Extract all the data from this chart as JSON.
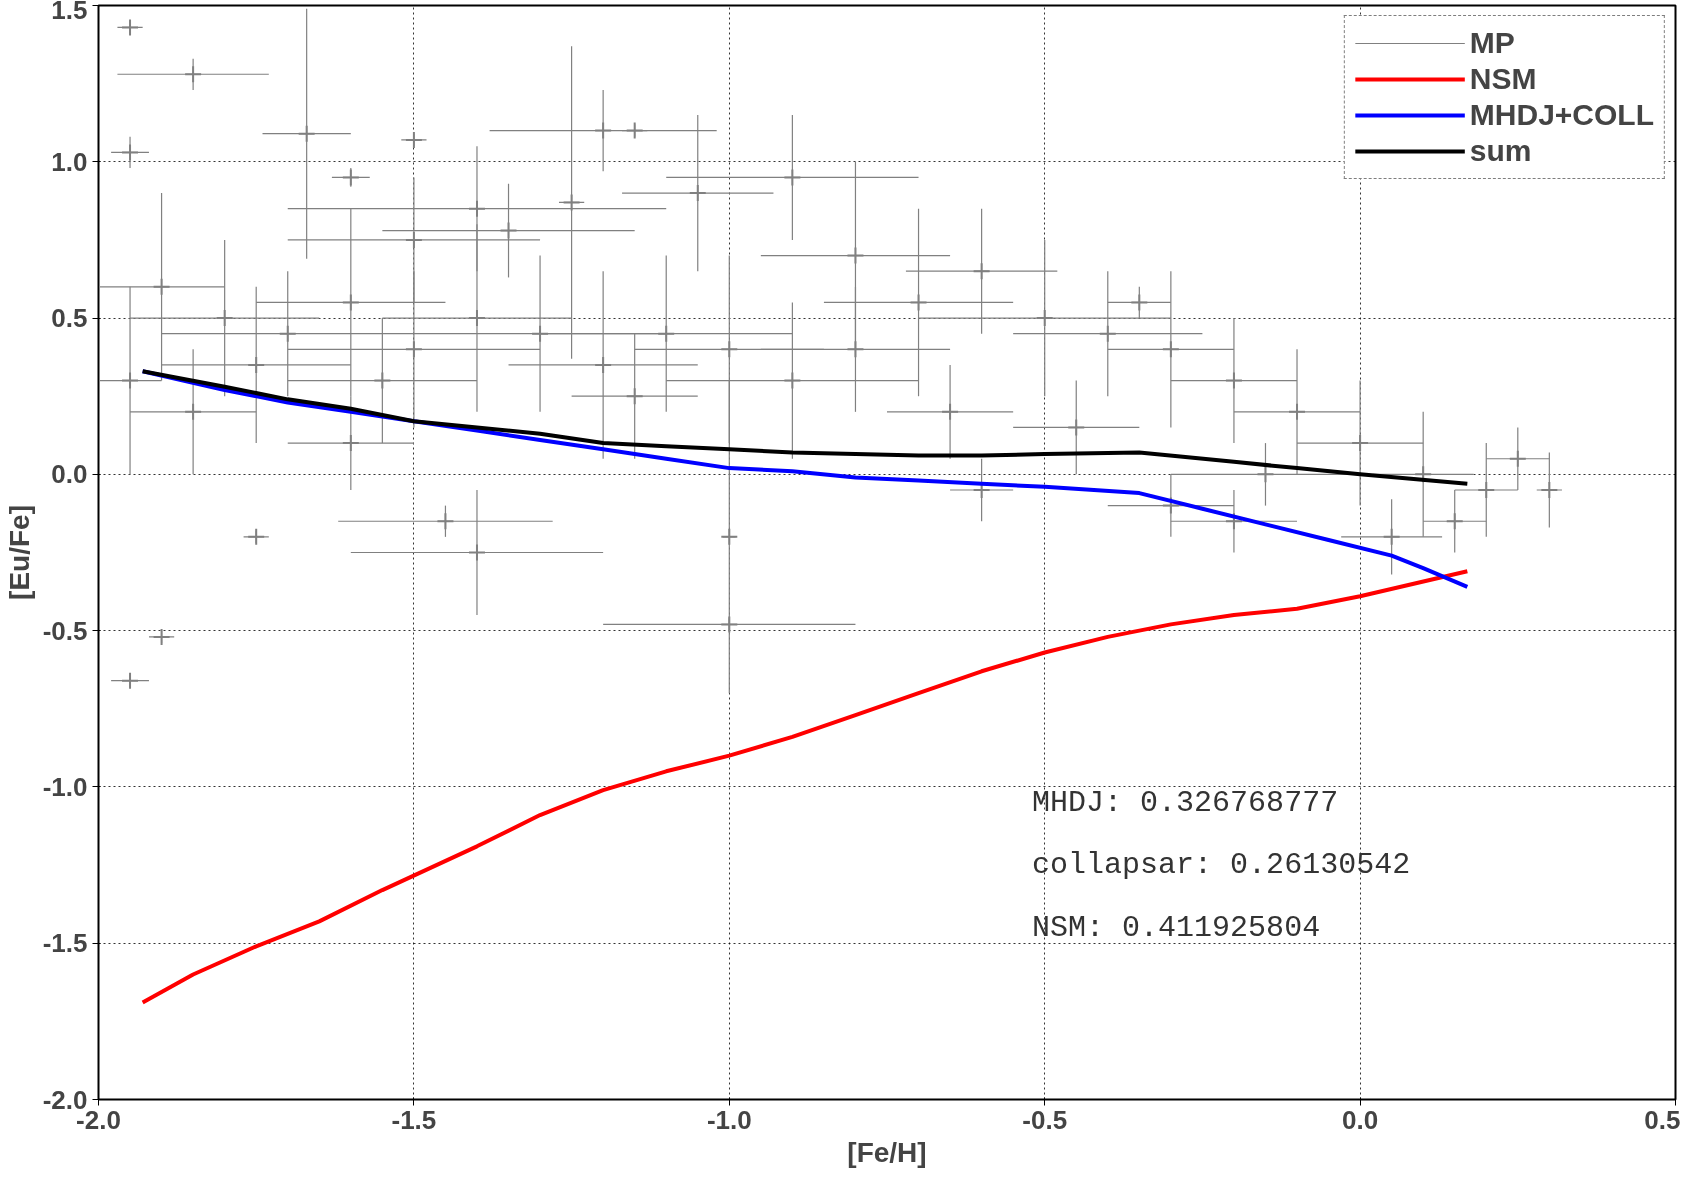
{
  "chart_data": {
    "type": "line",
    "xlabel": "[Fe/H]",
    "ylabel": "[Eu/Fe]",
    "xlim": [
      -2.0,
      0.5
    ],
    "ylim": [
      -2.0,
      1.5
    ],
    "xticks": [
      {
        "value": -2.0,
        "label": "-2.0"
      },
      {
        "value": -1.5,
        "label": "-1.5"
      },
      {
        "value": -1.0,
        "label": "-1.0"
      },
      {
        "value": -0.5,
        "label": "-0.5"
      },
      {
        "value": 0.0,
        "label": "0.0"
      },
      {
        "value": 0.5,
        "label": "0.5"
      }
    ],
    "yticks": [
      {
        "value": -2.0,
        "label": "-2.0"
      },
      {
        "value": -1.5,
        "label": "-1.5"
      },
      {
        "value": -1.0,
        "label": "-1.0"
      },
      {
        "value": -0.5,
        "label": "-0.5"
      },
      {
        "value": 0.0,
        "label": "0.0"
      },
      {
        "value": 0.5,
        "label": "0.5"
      },
      {
        "value": 1.0,
        "label": "1.0"
      },
      {
        "value": 1.5,
        "label": "1.5"
      }
    ],
    "grid": true,
    "legend": "top right",
    "annotations": [
      "MHDJ: 0.326768777",
      "collapsar: 0.26130542",
      "NSM: 0.411925804"
    ],
    "series": [
      {
        "name": "MP",
        "type": "scatter",
        "marker": "cross",
        "color": "#808080",
        "x": [
          -1.95,
          -1.85,
          -1.67,
          -1.6,
          -1.95,
          -1.5,
          -1.4,
          -1.35,
          -1.25,
          -1.15,
          -1.2,
          -1.05,
          -0.9,
          -0.8,
          -0.7,
          -0.6,
          -0.5,
          -0.4,
          -0.3,
          -0.2,
          -0.1,
          0.0,
          0.1,
          0.2,
          0.3,
          -1.9,
          -1.8,
          -1.7,
          -1.6,
          -1.5,
          -1.4,
          -1.3,
          -1.2,
          -1.1,
          -1.0,
          -0.9,
          -0.8,
          -1.85,
          -1.6,
          -1.45,
          -1.4,
          -1.0,
          -1.0,
          -1.9,
          -1.95,
          -1.75,
          -0.6,
          -0.3,
          -0.2,
          0.05,
          0.15,
          0.25,
          -0.15,
          -0.45,
          -0.65,
          -1.15,
          -1.55,
          -1.75,
          -1.95,
          -1.5,
          -0.35
        ],
        "values": [
          1.43,
          1.28,
          1.09,
          0.95,
          1.03,
          1.07,
          0.85,
          0.78,
          0.87,
          1.1,
          1.1,
          0.9,
          0.95,
          0.7,
          0.55,
          0.65,
          0.5,
          0.45,
          0.4,
          0.3,
          0.2,
          0.1,
          0.0,
          -0.05,
          -0.05,
          0.6,
          0.5,
          0.45,
          0.55,
          0.4,
          0.5,
          0.45,
          0.35,
          0.45,
          0.4,
          0.3,
          0.4,
          0.2,
          0.1,
          -0.15,
          -0.25,
          -0.48,
          -0.2,
          -0.52,
          -0.66,
          -0.2,
          -0.05,
          -0.1,
          -0.15,
          -0.2,
          -0.15,
          0.05,
          0.0,
          0.15,
          0.2,
          0.25,
          0.3,
          0.35,
          0.3,
          0.75,
          0.55
        ],
        "xerrors": [
          0.02,
          0.12,
          0.07,
          0.03,
          0.03,
          0.02,
          0.3,
          0.2,
          0.02,
          0.02,
          0.18,
          0.12,
          0.2,
          0.15,
          0.15,
          0.12,
          0.2,
          0.15,
          0.1,
          0.1,
          0.1,
          0.1,
          0.08,
          0.05,
          0.02,
          0.1,
          0.15,
          0.2,
          0.15,
          0.2,
          0.15,
          0.2,
          0.15,
          0.2,
          0.15,
          0.2,
          0.15,
          0.1,
          0.1,
          0.17,
          0.2,
          0.2,
          0.01,
          0.02,
          0.03,
          0.02,
          0.05,
          0.1,
          0.1,
          0.08,
          0.05,
          0.05,
          0.15,
          0.1,
          0.1,
          0.1,
          0.15,
          0.15,
          0.05,
          0.2,
          0.05
        ],
        "errors": [
          0.02,
          0.05,
          0.4,
          0.03,
          0.05,
          0.02,
          0.2,
          0.15,
          0.5,
          0.02,
          0.13,
          0.25,
          0.2,
          0.3,
          0.3,
          0.2,
          0.25,
          0.2,
          0.25,
          0.2,
          0.2,
          0.2,
          0.2,
          0.15,
          0.12,
          0.3,
          0.25,
          0.2,
          0.3,
          0.25,
          0.3,
          0.25,
          0.3,
          0.25,
          0.3,
          0.25,
          0.2,
          0.2,
          0.15,
          0.05,
          0.2,
          0.02,
          0.5,
          0.02,
          0.02,
          0.02,
          0.1,
          0.1,
          0.1,
          0.12,
          0.1,
          0.1,
          0.1,
          0.15,
          0.15,
          0.2,
          0.2,
          0.25,
          0.3,
          0.2,
          0.05
        ]
      },
      {
        "name": "NSM",
        "color": "#ff0000",
        "x": [
          -1.93,
          -1.85,
          -1.75,
          -1.65,
          -1.55,
          -1.4,
          -1.3,
          -1.2,
          -1.1,
          -1.0,
          -0.9,
          -0.8,
          -0.7,
          -0.6,
          -0.5,
          -0.4,
          -0.3,
          -0.2,
          -0.1,
          0.0,
          0.17
        ],
        "values": [
          -1.69,
          -1.6,
          -1.51,
          -1.43,
          -1.33,
          -1.19,
          -1.09,
          -1.01,
          -0.95,
          -0.9,
          -0.84,
          -0.77,
          -0.7,
          -0.63,
          -0.57,
          -0.52,
          -0.48,
          -0.45,
          -0.43,
          -0.39,
          -0.31
        ]
      },
      {
        "name": "MHDJ+COLL",
        "color": "#0000ff",
        "x": [
          -1.93,
          -1.8,
          -1.7,
          -1.6,
          -1.5,
          -1.4,
          -1.3,
          -1.2,
          -1.1,
          -1.0,
          -0.9,
          -0.8,
          -0.7,
          -0.6,
          -0.5,
          -0.35,
          -0.25,
          -0.15,
          -0.05,
          0.05,
          0.1,
          0.17
        ],
        "values": [
          0.33,
          0.27,
          0.23,
          0.2,
          0.17,
          0.14,
          0.11,
          0.08,
          0.05,
          0.02,
          0.01,
          -0.01,
          -0.02,
          -0.03,
          -0.04,
          -0.06,
          -0.11,
          -0.16,
          -0.21,
          -0.26,
          -0.3,
          -0.36
        ]
      },
      {
        "name": "sum",
        "color": "#000000",
        "x": [
          -1.93,
          -1.8,
          -1.7,
          -1.6,
          -1.5,
          -1.4,
          -1.3,
          -1.2,
          -1.1,
          -1.0,
          -0.9,
          -0.8,
          -0.7,
          -0.6,
          -0.5,
          -0.35,
          -0.2,
          -0.1,
          0.0,
          0.17
        ],
        "values": [
          0.33,
          0.28,
          0.24,
          0.21,
          0.17,
          0.15,
          0.13,
          0.1,
          0.09,
          0.08,
          0.07,
          0.065,
          0.06,
          0.06,
          0.065,
          0.07,
          0.04,
          0.02,
          0.0,
          -0.03
        ]
      }
    ]
  }
}
